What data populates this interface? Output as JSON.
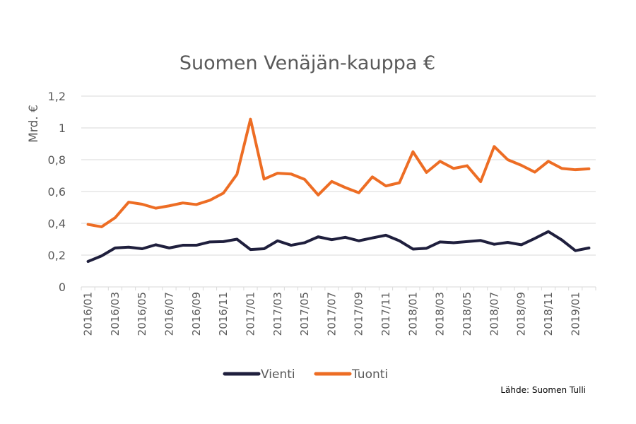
{
  "chart_data": {
    "type": "line",
    "title": "Suomen Venäjän-kauppa €",
    "xlabel": "",
    "ylabel": "Mrd. €",
    "ylim": [
      0,
      1.2
    ],
    "yticks": [
      "0",
      "0,2",
      "0,4",
      "0,6",
      "0,8",
      "1",
      "1,2"
    ],
    "grid": true,
    "legend": "bottom",
    "x": [
      "2016/01",
      "2016/02",
      "2016/03",
      "2016/04",
      "2016/05",
      "2016/06",
      "2016/07",
      "2016/08",
      "2016/09",
      "2016/10",
      "2016/11",
      "2016/12",
      "2017/01",
      "2017/02",
      "2017/03",
      "2017/04",
      "2017/05",
      "2017/06",
      "2017/07",
      "2017/08",
      "2017/09",
      "2017/10",
      "2017/11",
      "2017/12",
      "2018/01",
      "2018/02",
      "2018/03",
      "2018/04",
      "2018/05",
      "2018/06",
      "2018/07",
      "2018/08",
      "2018/09",
      "2018/10",
      "2018/11",
      "2018/12",
      "2019/01",
      "2019/02"
    ],
    "xticks": [
      "2016/01",
      "2016/03",
      "2016/05",
      "2016/07",
      "2016/09",
      "2016/11",
      "2017/01",
      "2017/03",
      "2017/05",
      "2017/07",
      "2017/09",
      "2017/11",
      "2018/01",
      "2018/03",
      "2018/05",
      "2018/07",
      "2018/09",
      "2018/11",
      "2019/01"
    ],
    "series": [
      {
        "name": "Vienti",
        "color": "#1f1f3d",
        "values": [
          0.16,
          0.195,
          0.245,
          0.25,
          0.24,
          0.265,
          0.245,
          0.262,
          0.262,
          0.283,
          0.285,
          0.3,
          0.235,
          0.24,
          0.29,
          0.262,
          0.278,
          0.315,
          0.297,
          0.312,
          0.29,
          0.308,
          0.325,
          0.29,
          0.238,
          0.243,
          0.283,
          0.278,
          0.285,
          0.292,
          0.268,
          0.28,
          0.265,
          0.305,
          0.348,
          0.295,
          0.228,
          0.245
        ]
      },
      {
        "name": "Tuonti",
        "color": "#ed6d24",
        "values": [
          0.393,
          0.378,
          0.435,
          0.533,
          0.52,
          0.495,
          0.51,
          0.528,
          0.518,
          0.545,
          0.59,
          0.708,
          1.055,
          0.678,
          0.715,
          0.71,
          0.676,
          0.578,
          0.663,
          0.625,
          0.592,
          0.692,
          0.635,
          0.655,
          0.85,
          0.72,
          0.79,
          0.745,
          0.762,
          0.662,
          0.883,
          0.8,
          0.765,
          0.722,
          0.79,
          0.745,
          0.737,
          0.743
        ]
      }
    ]
  },
  "source": "Lähde: Suomen Tulli"
}
